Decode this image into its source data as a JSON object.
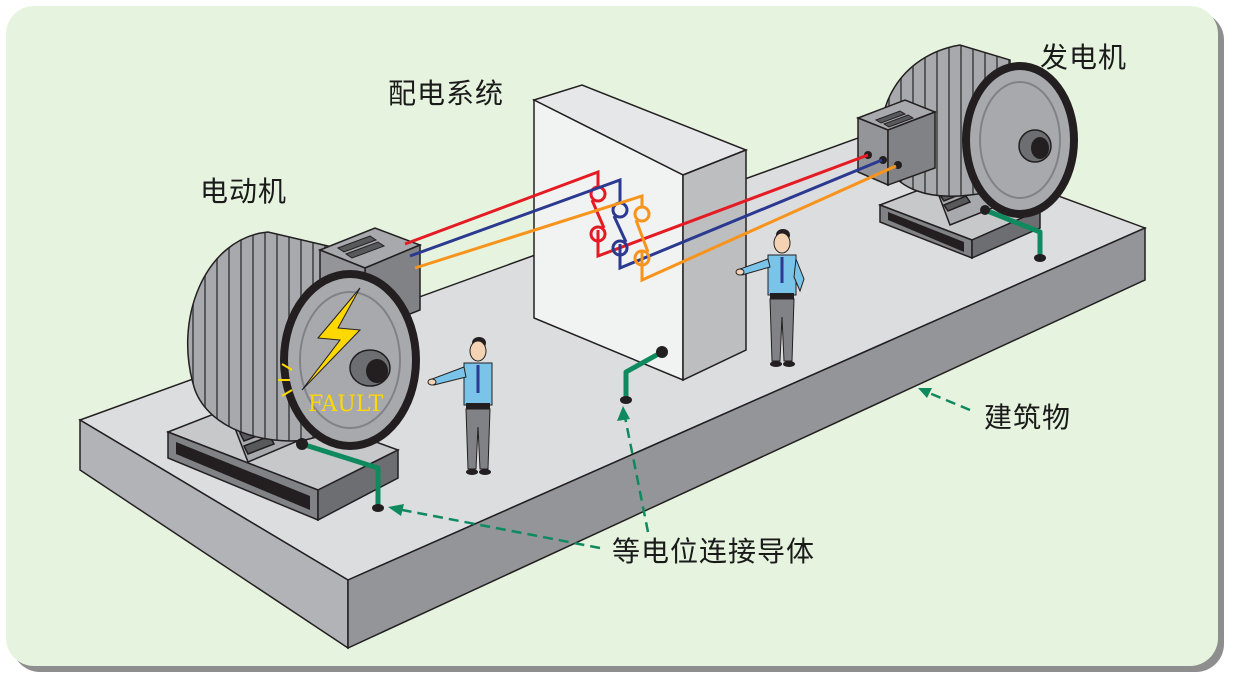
{
  "labels": {
    "generator": "发电机",
    "distribution": "配电系统",
    "motor": "电动机",
    "building": "建筑物",
    "conductor": "等电位连接导体",
    "fault": "FAULT"
  },
  "colors": {
    "background": "#e6f3df",
    "phase_red": "#e51b24",
    "phase_blue": "#2b3990",
    "phase_orange": "#f7941d",
    "bonding": "#0f8a5f",
    "fault": "#ffd800"
  }
}
